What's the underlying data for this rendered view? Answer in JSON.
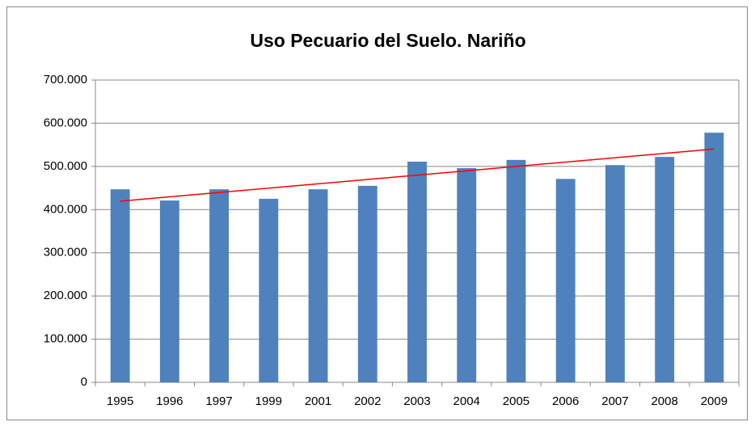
{
  "chart_data": {
    "type": "bar",
    "title": "Uso Pecuario del Suelo. Nariño",
    "categories": [
      "1995",
      "1996",
      "1997",
      "1999",
      "2001",
      "2002",
      "2003",
      "2004",
      "2005",
      "2006",
      "2007",
      "2008",
      "2009"
    ],
    "values": [
      447000,
      421000,
      447000,
      425000,
      447000,
      455000,
      511000,
      496000,
      515000,
      471000,
      503000,
      522000,
      578000
    ],
    "color": "#4f81bd",
    "ylim": [
      0,
      700000
    ],
    "yticks": [
      0,
      {
        "value": 100000,
        "label": "100.000"
      },
      {
        "value": 200000,
        "label": "200.000"
      },
      {
        "value": 300000,
        "label": "300.000"
      },
      {
        "value": 400000,
        "label": "400.000"
      },
      {
        "value": 500000,
        "label": "500.000"
      },
      {
        "value": 600000,
        "label": "600.000"
      },
      {
        "value": 700000,
        "label": "700.000"
      }
    ],
    "grid": true,
    "trendline": true,
    "trendline_color": "#ff0000"
  }
}
